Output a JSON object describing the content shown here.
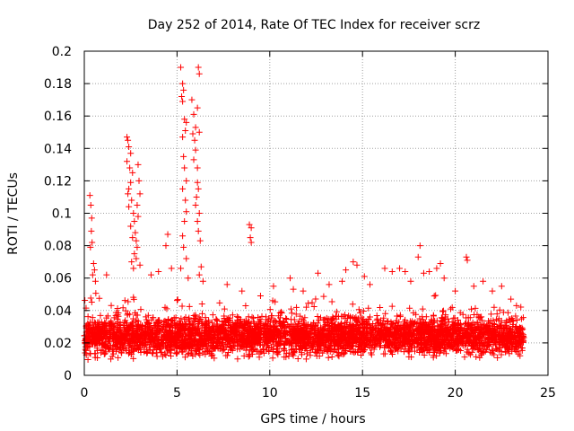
{
  "chart_data": {
    "type": "scatter",
    "title": "Day 252 of 2014, Rate Of TEC Index for receiver scrz",
    "xlabel": "GPS time / hours",
    "ylabel": "ROTI / TECUs",
    "xlim": [
      0,
      25
    ],
    "ylim": [
      0,
      0.2
    ],
    "xticks": [
      0,
      5,
      10,
      15,
      20,
      25
    ],
    "xtick_labels": [
      "0",
      "5",
      "10",
      "15",
      "20",
      "25"
    ],
    "yticks": [
      0,
      0.02,
      0.04,
      0.06,
      0.08,
      0.1,
      0.12,
      0.14,
      0.16,
      0.18,
      0.2
    ],
    "ytick_labels": [
      "0",
      "0.02",
      "0.04",
      "0.06",
      "0.08",
      "0.1",
      "0.12",
      "0.14",
      "0.16",
      "0.18",
      "0.2"
    ],
    "grid": true,
    "marker": "+",
    "color": "#ff0000",
    "x_data_extent": [
      0,
      23.7
    ],
    "baseline_band": [
      0.008,
      0.04
    ],
    "series": [
      {
        "name": "scrz",
        "points": [
          [
            0.3,
            0.111
          ],
          [
            0.35,
            0.105
          ],
          [
            0.4,
            0.097
          ],
          [
            0.38,
            0.089
          ],
          [
            0.42,
            0.082
          ],
          [
            0.33,
            0.079
          ],
          [
            0.5,
            0.069
          ],
          [
            0.55,
            0.065
          ],
          [
            0.6,
            0.058
          ],
          [
            0.45,
            0.062
          ],
          [
            1.2,
            0.062
          ],
          [
            2.3,
            0.147
          ],
          [
            2.35,
            0.145
          ],
          [
            2.4,
            0.141
          ],
          [
            2.5,
            0.137
          ],
          [
            2.3,
            0.132
          ],
          [
            2.45,
            0.128
          ],
          [
            2.6,
            0.125
          ],
          [
            2.5,
            0.119
          ],
          [
            2.4,
            0.115
          ],
          [
            2.35,
            0.112
          ],
          [
            2.55,
            0.108
          ],
          [
            2.4,
            0.104
          ],
          [
            2.65,
            0.1
          ],
          [
            2.7,
            0.095
          ],
          [
            2.5,
            0.092
          ],
          [
            2.75,
            0.088
          ],
          [
            2.6,
            0.085
          ],
          [
            2.8,
            0.083
          ],
          [
            2.85,
            0.079
          ],
          [
            2.7,
            0.075
          ],
          [
            2.9,
            0.13
          ],
          [
            2.95,
            0.12
          ],
          [
            3.0,
            0.112
          ],
          [
            2.85,
            0.105
          ],
          [
            2.9,
            0.098
          ],
          [
            3.0,
            0.068
          ],
          [
            2.8,
            0.072
          ],
          [
            2.55,
            0.07
          ],
          [
            2.65,
            0.066
          ],
          [
            3.6,
            0.062
          ],
          [
            4.0,
            0.064
          ],
          [
            4.4,
            0.08
          ],
          [
            4.5,
            0.087
          ],
          [
            4.7,
            0.066
          ],
          [
            5.2,
            0.19
          ],
          [
            5.3,
            0.18
          ],
          [
            5.35,
            0.176
          ],
          [
            5.25,
            0.172
          ],
          [
            5.3,
            0.169
          ],
          [
            5.4,
            0.158
          ],
          [
            5.5,
            0.156
          ],
          [
            5.45,
            0.151
          ],
          [
            5.3,
            0.147
          ],
          [
            5.35,
            0.135
          ],
          [
            5.4,
            0.128
          ],
          [
            5.5,
            0.12
          ],
          [
            5.3,
            0.115
          ],
          [
            5.45,
            0.108
          ],
          [
            5.5,
            0.101
          ],
          [
            5.4,
            0.095
          ],
          [
            5.3,
            0.086
          ],
          [
            5.35,
            0.079
          ],
          [
            5.2,
            0.066
          ],
          [
            5.5,
            0.072
          ],
          [
            5.6,
            0.06
          ],
          [
            5.8,
            0.17
          ],
          [
            5.9,
            0.161
          ],
          [
            6.0,
            0.153
          ],
          [
            5.85,
            0.149
          ],
          [
            5.95,
            0.145
          ],
          [
            6.0,
            0.139
          ],
          [
            5.9,
            0.133
          ],
          [
            6.1,
            0.128
          ],
          [
            6.15,
            0.19
          ],
          [
            6.2,
            0.186
          ],
          [
            6.1,
            0.165
          ],
          [
            6.2,
            0.15
          ],
          [
            6.1,
            0.119
          ],
          [
            6.15,
            0.115
          ],
          [
            6.05,
            0.11
          ],
          [
            6.0,
            0.105
          ],
          [
            6.2,
            0.1
          ],
          [
            6.1,
            0.095
          ],
          [
            6.15,
            0.089
          ],
          [
            6.25,
            0.083
          ],
          [
            6.3,
            0.067
          ],
          [
            6.2,
            0.062
          ],
          [
            6.4,
            0.058
          ],
          [
            7.7,
            0.056
          ],
          [
            8.5,
            0.052
          ],
          [
            8.9,
            0.093
          ],
          [
            9.0,
            0.091
          ],
          [
            8.95,
            0.085
          ],
          [
            9.0,
            0.082
          ],
          [
            9.5,
            0.049
          ],
          [
            10.2,
            0.055
          ],
          [
            11.1,
            0.06
          ],
          [
            11.8,
            0.052
          ],
          [
            12.6,
            0.063
          ],
          [
            13.2,
            0.056
          ],
          [
            13.9,
            0.058
          ],
          [
            14.1,
            0.065
          ],
          [
            14.5,
            0.07
          ],
          [
            14.7,
            0.068
          ],
          [
            15.1,
            0.061
          ],
          [
            15.4,
            0.056
          ],
          [
            16.2,
            0.066
          ],
          [
            16.6,
            0.064
          ],
          [
            17.0,
            0.066
          ],
          [
            17.3,
            0.064
          ],
          [
            17.6,
            0.058
          ],
          [
            18.1,
            0.08
          ],
          [
            18.0,
            0.073
          ],
          [
            18.3,
            0.063
          ],
          [
            18.6,
            0.064
          ],
          [
            19.0,
            0.066
          ],
          [
            19.2,
            0.069
          ],
          [
            19.4,
            0.06
          ],
          [
            20.0,
            0.052
          ],
          [
            20.6,
            0.073
          ],
          [
            20.65,
            0.071
          ],
          [
            21.0,
            0.055
          ],
          [
            21.5,
            0.058
          ],
          [
            22.0,
            0.052
          ],
          [
            22.5,
            0.055
          ],
          [
            23.0,
            0.047
          ],
          [
            23.3,
            0.043
          ]
        ]
      }
    ]
  }
}
